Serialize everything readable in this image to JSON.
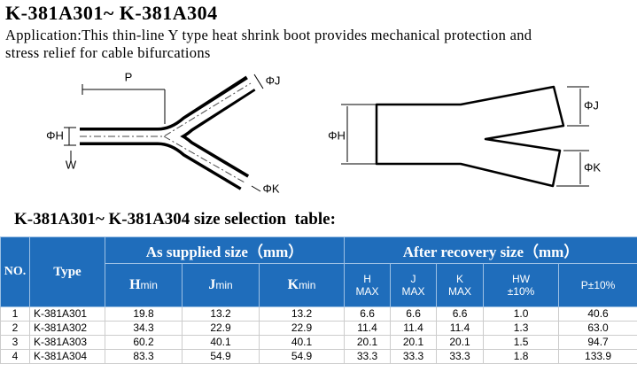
{
  "header": {
    "title": "K-381A301~ K-381A304",
    "application": [
      "Application:This thin-line Y type heat shrink boot provides mechanical protection and",
      "stress relief for cable bifurcations"
    ]
  },
  "diagram_left": {
    "labels": [
      "P",
      "ΦJ",
      "ΦH",
      "W",
      "ΦK"
    ]
  },
  "diagram_right": {
    "labels": [
      "ΦJ",
      "ΦH",
      "ΦK"
    ]
  },
  "table": {
    "title": "K-381A301~ K-381A304 size selection  table:",
    "groups": [
      "As supplied size（mm）",
      "After recovery size（mm）"
    ],
    "columns": {
      "no": "NO.",
      "type": "Type",
      "supplied": [
        [
          "H",
          "min"
        ],
        [
          "J",
          "min"
        ],
        [
          "K",
          "min"
        ]
      ],
      "recovered": [
        [
          "H",
          "MAX"
        ],
        [
          "J",
          "MAX"
        ],
        [
          "K",
          "MAX"
        ],
        [
          "HW",
          "±10%"
        ]
      ],
      "p": "P±10%"
    },
    "rows": [
      [
        "1",
        "K-381A301",
        "19.8",
        "13.2",
        "13.2",
        "6.6",
        "6.6",
        "6.6",
        "1.0",
        "40.6"
      ],
      [
        "2",
        "K-381A302",
        "34.3",
        "22.9",
        "22.9",
        "11.4",
        "11.4",
        "11.4",
        "1.3",
        "63.0"
      ],
      [
        "3",
        "K-381A303",
        "60.2",
        "40.1",
        "40.1",
        "20.1",
        "20.1",
        "20.1",
        "1.5",
        "94.7"
      ],
      [
        "4",
        "K-381A304",
        "83.3",
        "54.9",
        "54.9",
        "33.3",
        "33.3",
        "33.3",
        "1.8",
        "133.9"
      ]
    ]
  }
}
